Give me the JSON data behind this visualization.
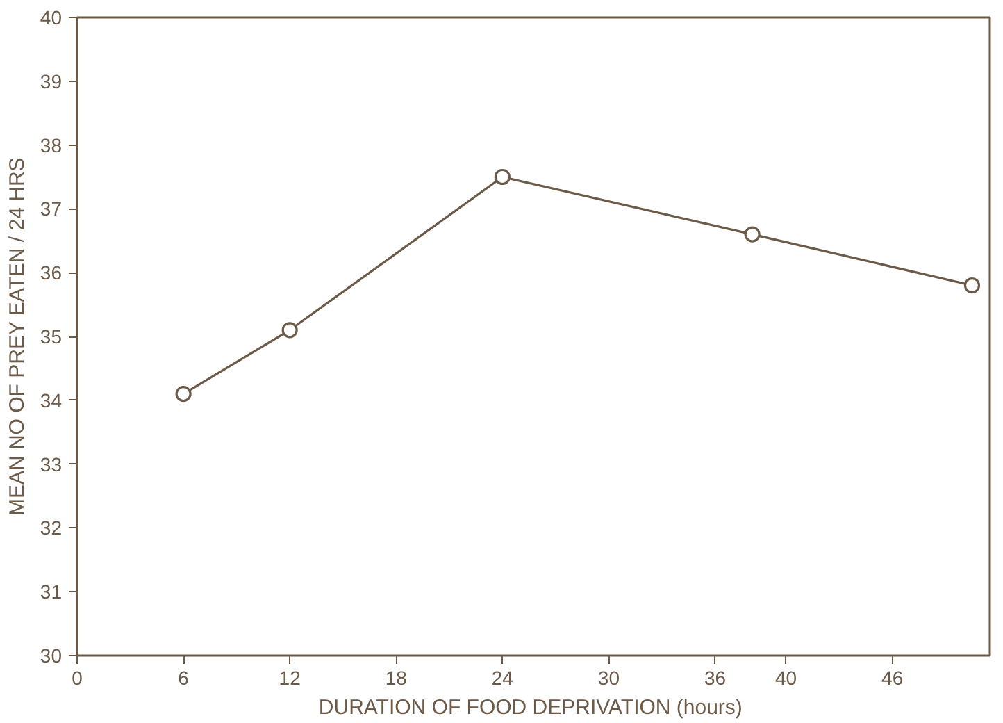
{
  "chart_data": {
    "type": "line",
    "xlabel": "DURATION OF FOOD DEPRIVATION  (hours)",
    "ylabel": "MEAN NO OF PREY EATEN / 24 HRS",
    "x": [
      6,
      12,
      24,
      38.1,
      50.5
    ],
    "series": [
      {
        "color": "#6b5a48",
        "values": [
          34.1,
          35.1,
          37.5,
          36.6,
          35.8
        ]
      }
    ],
    "xlim": [
      0,
      51.5
    ],
    "ylim": [
      30,
      40
    ],
    "xticks": [
      0,
      6,
      12,
      18,
      24,
      30,
      36,
      40,
      46
    ],
    "yticks": [
      30,
      31,
      32,
      33,
      34,
      35,
      36,
      37,
      38,
      39,
      40
    ],
    "grid": false,
    "marker": "circle",
    "line_style": "solid"
  }
}
